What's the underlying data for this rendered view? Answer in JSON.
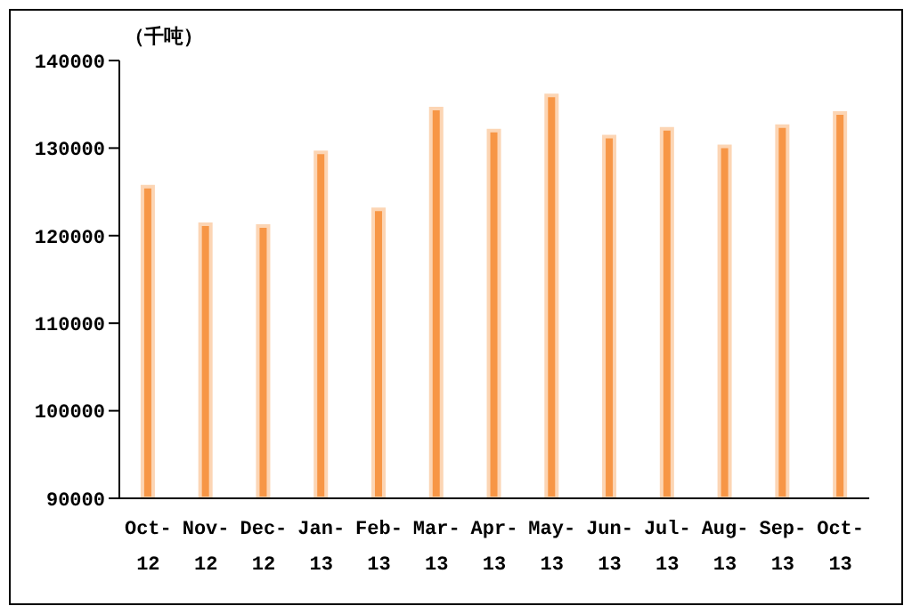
{
  "chart_data": {
    "type": "bar",
    "ylabel": "（千吨）",
    "categories": [
      "Oct-12",
      "Nov-12",
      "Dec-12",
      "Jan-13",
      "Feb-13",
      "Mar-13",
      "Apr-13",
      "May-13",
      "Jun-13",
      "Jul-13",
      "Aug-13",
      "Sep-13",
      "Oct-13"
    ],
    "values": [
      125600,
      121300,
      121100,
      129500,
      123000,
      134500,
      132000,
      136000,
      131300,
      132200,
      130200,
      132500,
      134000
    ],
    "color": "#f79646",
    "ylim": [
      90000,
      140000
    ],
    "yticks": [
      90000,
      100000,
      110000,
      120000,
      130000,
      140000
    ],
    "grid": false
  }
}
